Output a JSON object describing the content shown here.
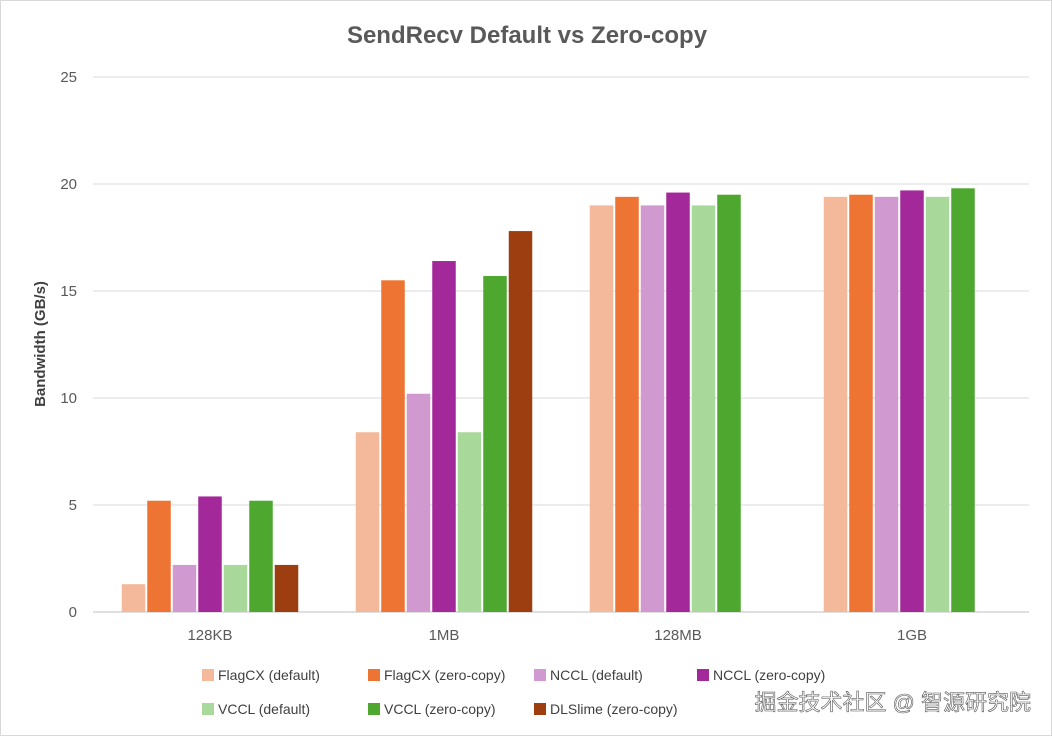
{
  "chart_data": {
    "type": "bar",
    "title": "SendRecv Default vs Zero-copy",
    "ylabel": "Bandwidth (GB/s)",
    "xlabel": "",
    "ylim": [
      0,
      25
    ],
    "yticks": [
      "0",
      "5",
      "10",
      "15",
      "20",
      "25"
    ],
    "grid": true,
    "legend_position": "bottom",
    "categories": [
      "128KB",
      "1MB",
      "128MB",
      "1GB"
    ],
    "series": [
      {
        "name": "FlagCX (default)",
        "color": "#f4b99a",
        "values": [
          1.3,
          8.4,
          19.0,
          19.4
        ]
      },
      {
        "name": "FlagCX (zero-copy)",
        "color": "#ed7433",
        "values": [
          5.2,
          15.5,
          19.4,
          19.5
        ]
      },
      {
        "name": "NCCL (default)",
        "color": "#d09ad0",
        "values": [
          2.2,
          10.2,
          19.0,
          19.4
        ]
      },
      {
        "name": "NCCL (zero-copy)",
        "color": "#a3299b",
        "values": [
          5.4,
          16.4,
          19.6,
          19.7
        ]
      },
      {
        "name": "VCCL (default)",
        "color": "#a9d99a",
        "values": [
          2.2,
          8.4,
          19.0,
          19.4
        ]
      },
      {
        "name": "VCCL (zero-copy)",
        "color": "#4ea72e",
        "values": [
          5.2,
          15.7,
          19.5,
          19.8
        ]
      },
      {
        "name": "DLSlime (zero-copy)",
        "color": "#9c3e10",
        "values": [
          2.2,
          17.8,
          null,
          null
        ]
      }
    ]
  },
  "watermark": "掘金技术社区 @ 智源研究院"
}
